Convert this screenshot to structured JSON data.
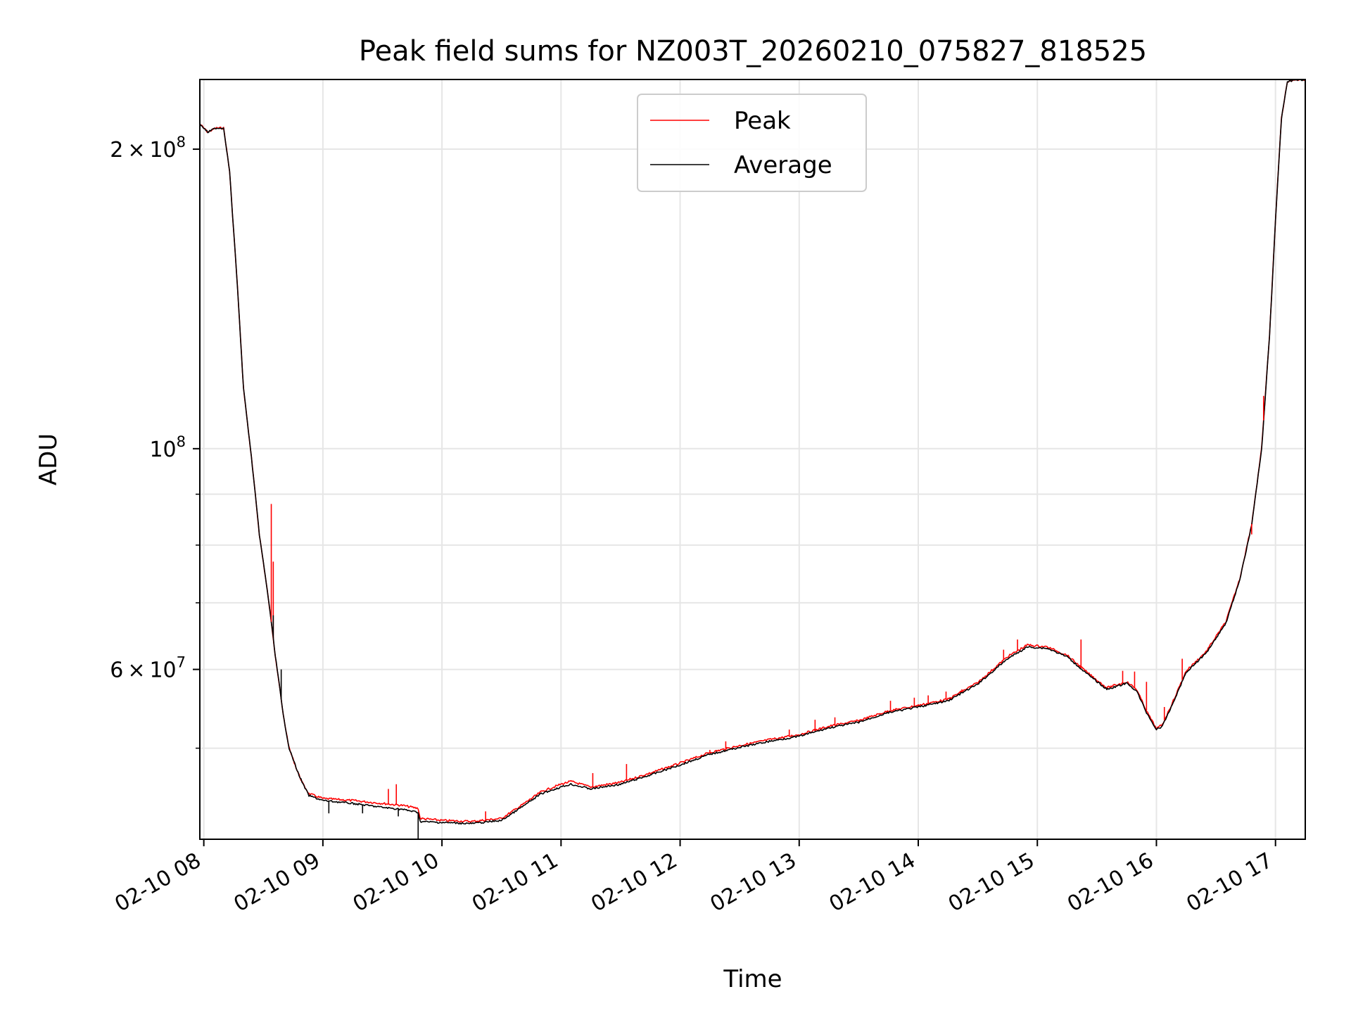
{
  "chart_data": {
    "type": "line",
    "title": "Peak field sums for NZ003T_20260210_075827_818525",
    "xlabel": "Time",
    "ylabel": "ADU",
    "date": "2026-02-10",
    "xlim": [
      "2026-02-10 07:58",
      "2026-02-10 17:15"
    ],
    "ylim": [
      40500000,
      235000000
    ],
    "yscale": "log",
    "grid": true,
    "legend_position": "top-center",
    "x_ticks": [
      {
        "t": "2026-02-10 08:00",
        "label": "02-10 08"
      },
      {
        "t": "2026-02-10 09:00",
        "label": "02-10 09"
      },
      {
        "t": "2026-02-10 10:00",
        "label": "02-10 10"
      },
      {
        "t": "2026-02-10 11:00",
        "label": "02-10 11"
      },
      {
        "t": "2026-02-10 12:00",
        "label": "02-10 12"
      },
      {
        "t": "2026-02-10 13:00",
        "label": "02-10 13"
      },
      {
        "t": "2026-02-10 14:00",
        "label": "02-10 14"
      },
      {
        "t": "2026-02-10 15:00",
        "label": "02-10 15"
      },
      {
        "t": "2026-02-10 16:00",
        "label": "02-10 16"
      },
      {
        "t": "2026-02-10 17:00",
        "label": "02-10 17"
      }
    ],
    "y_major_ticks": [
      {
        "v": 200000000,
        "mant": "2",
        "exp": "8"
      },
      {
        "v": 100000000,
        "mant": "",
        "exp": "8"
      },
      {
        "v": 60000000,
        "mant": "6",
        "exp": "7"
      }
    ],
    "y_minor_ticks": [
      50000000,
      70000000,
      80000000,
      90000000
    ],
    "series": [
      {
        "name": "Peak",
        "color": "#ff0000",
        "x": [
          "2026-02-10 07:58",
          "2026-02-10 08:02",
          "2026-02-10 08:06",
          "2026-02-10 08:10",
          "2026-02-10 08:13",
          "2026-02-10 08:17",
          "2026-02-10 08:20",
          "2026-02-10 08:24",
          "2026-02-10 08:28",
          "2026-02-10 08:32",
          "2026-02-10 08:34",
          "2026-02-10 08:36",
          "2026-02-10 08:38",
          "2026-02-10 08:40",
          "2026-02-10 08:43",
          "2026-02-10 08:47",
          "2026-02-10 08:50",
          "2026-02-10 08:53",
          "2026-02-10 09:00",
          "2026-02-10 09:15",
          "2026-02-10 09:30",
          "2026-02-10 09:40",
          "2026-02-10 09:48",
          "2026-02-10 09:49",
          "2026-02-10 10:00",
          "2026-02-10 10:15",
          "2026-02-10 10:30",
          "2026-02-10 10:40",
          "2026-02-10 10:50",
          "2026-02-10 11:00",
          "2026-02-10 11:05",
          "2026-02-10 11:15",
          "2026-02-10 11:30",
          "2026-02-10 11:45",
          "2026-02-10 12:00",
          "2026-02-10 12:15",
          "2026-02-10 12:30",
          "2026-02-10 12:45",
          "2026-02-10 13:00",
          "2026-02-10 13:15",
          "2026-02-10 13:30",
          "2026-02-10 13:45",
          "2026-02-10 14:00",
          "2026-02-10 14:15",
          "2026-02-10 14:30",
          "2026-02-10 14:45",
          "2026-02-10 14:55",
          "2026-02-10 15:05",
          "2026-02-10 15:15",
          "2026-02-10 15:25",
          "2026-02-10 15:35",
          "2026-02-10 15:45",
          "2026-02-10 15:50",
          "2026-02-10 15:55",
          "2026-02-10 16:00",
          "2026-02-10 16:03",
          "2026-02-10 16:08",
          "2026-02-10 16:15",
          "2026-02-10 16:25",
          "2026-02-10 16:35",
          "2026-02-10 16:42",
          "2026-02-10 16:48",
          "2026-02-10 16:53",
          "2026-02-10 16:57",
          "2026-02-10 17:00",
          "2026-02-10 17:03",
          "2026-02-10 17:06",
          "2026-02-10 17:10",
          "2026-02-10 17:15"
        ],
        "y": [
          212000000,
          208000000,
          210000000,
          210000000,
          190000000,
          145000000,
          115000000,
          98000000,
          82000000,
          72000000,
          67000000,
          62000000,
          58000000,
          54000000,
          50000000,
          47500000,
          46000000,
          45000000,
          44500000,
          44300000,
          44000000,
          43800000,
          43500000,
          42500000,
          42300000,
          42200000,
          42500000,
          43800000,
          45200000,
          46000000,
          46300000,
          45700000,
          46200000,
          47200000,
          48300000,
          49500000,
          50300000,
          51000000,
          51600000,
          52600000,
          53300000,
          54500000,
          55200000,
          56000000,
          58200000,
          61800000,
          63500000,
          63200000,
          62000000,
          59600000,
          57500000,
          58300000,
          57300000,
          54500000,
          52300000,
          52800000,
          55500000,
          59800000,
          62500000,
          67000000,
          74000000,
          84000000,
          100000000,
          130000000,
          170000000,
          215000000,
          234000000,
          235000000,
          235000000
        ],
        "spikes": [
          {
            "t": "2026-02-10 08:34",
            "y": 88000000
          },
          {
            "t": "2026-02-10 08:35",
            "y": 77000000
          },
          {
            "t": "2026-02-10 09:33",
            "y": 45500000
          },
          {
            "t": "2026-02-10 09:37",
            "y": 46000000
          },
          {
            "t": "2026-02-10 10:22",
            "y": 43200000
          },
          {
            "t": "2026-02-10 11:16",
            "y": 47200000
          },
          {
            "t": "2026-02-10 11:33",
            "y": 48200000
          },
          {
            "t": "2026-02-10 12:15",
            "y": 49800000
          },
          {
            "t": "2026-02-10 12:23",
            "y": 50800000
          },
          {
            "t": "2026-02-10 12:55",
            "y": 52200000
          },
          {
            "t": "2026-02-10 13:08",
            "y": 53400000
          },
          {
            "t": "2026-02-10 13:18",
            "y": 53700000
          },
          {
            "t": "2026-02-10 13:46",
            "y": 55800000
          },
          {
            "t": "2026-02-10 13:58",
            "y": 56200000
          },
          {
            "t": "2026-02-10 14:05",
            "y": 56500000
          },
          {
            "t": "2026-02-10 14:14",
            "y": 57000000
          },
          {
            "t": "2026-02-10 14:22",
            "y": 57300000
          },
          {
            "t": "2026-02-10 14:43",
            "y": 62800000
          },
          {
            "t": "2026-02-10 14:50",
            "y": 64300000
          },
          {
            "t": "2026-02-10 15:22",
            "y": 64300000
          },
          {
            "t": "2026-02-10 15:43",
            "y": 59800000
          },
          {
            "t": "2026-02-10 15:49",
            "y": 59700000
          },
          {
            "t": "2026-02-10 15:55",
            "y": 58300000
          },
          {
            "t": "2026-02-10 16:04",
            "y": 55000000
          },
          {
            "t": "2026-02-10 16:13",
            "y": 61500000
          },
          {
            "t": "2026-02-10 16:48",
            "y": 82000000
          },
          {
            "t": "2026-02-10 16:54",
            "y": 113000000
          }
        ]
      },
      {
        "name": "Average",
        "color": "#000000",
        "x": [
          "2026-02-10 07:58",
          "2026-02-10 08:02",
          "2026-02-10 08:06",
          "2026-02-10 08:10",
          "2026-02-10 08:13",
          "2026-02-10 08:17",
          "2026-02-10 08:20",
          "2026-02-10 08:24",
          "2026-02-10 08:28",
          "2026-02-10 08:32",
          "2026-02-10 08:34",
          "2026-02-10 08:36",
          "2026-02-10 08:38",
          "2026-02-10 08:40",
          "2026-02-10 08:43",
          "2026-02-10 08:47",
          "2026-02-10 08:50",
          "2026-02-10 08:53",
          "2026-02-10 09:00",
          "2026-02-10 09:15",
          "2026-02-10 09:30",
          "2026-02-10 09:40",
          "2026-02-10 09:48",
          "2026-02-10 09:49",
          "2026-02-10 10:00",
          "2026-02-10 10:15",
          "2026-02-10 10:30",
          "2026-02-10 10:40",
          "2026-02-10 10:50",
          "2026-02-10 11:00",
          "2026-02-10 11:05",
          "2026-02-10 11:15",
          "2026-02-10 11:30",
          "2026-02-10 11:45",
          "2026-02-10 12:00",
          "2026-02-10 12:15",
          "2026-02-10 12:30",
          "2026-02-10 12:45",
          "2026-02-10 13:00",
          "2026-02-10 13:15",
          "2026-02-10 13:30",
          "2026-02-10 13:45",
          "2026-02-10 14:00",
          "2026-02-10 14:15",
          "2026-02-10 14:30",
          "2026-02-10 14:45",
          "2026-02-10 14:55",
          "2026-02-10 15:05",
          "2026-02-10 15:15",
          "2026-02-10 15:25",
          "2026-02-10 15:35",
          "2026-02-10 15:45",
          "2026-02-10 15:50",
          "2026-02-10 15:55",
          "2026-02-10 16:00",
          "2026-02-10 16:03",
          "2026-02-10 16:08",
          "2026-02-10 16:15",
          "2026-02-10 16:25",
          "2026-02-10 16:35",
          "2026-02-10 16:42",
          "2026-02-10 16:48",
          "2026-02-10 16:53",
          "2026-02-10 16:57",
          "2026-02-10 17:00",
          "2026-02-10 17:03",
          "2026-02-10 17:06",
          "2026-02-10 17:10",
          "2026-02-10 17:15"
        ],
        "y": [
          212000000,
          208000000,
          210000000,
          210000000,
          190000000,
          145000000,
          115000000,
          98000000,
          82000000,
          72000000,
          67000000,
          62000000,
          58000000,
          54000000,
          50000000,
          47500000,
          46000000,
          44800000,
          44300000,
          44000000,
          43600000,
          43400000,
          43100000,
          42200000,
          42100000,
          42000000,
          42300000,
          43600000,
          45000000,
          45700000,
          46000000,
          45500000,
          46000000,
          47000000,
          48100000,
          49300000,
          50100000,
          50800000,
          51400000,
          52400000,
          53100000,
          54300000,
          55000000,
          55800000,
          58000000,
          61500000,
          63200000,
          63000000,
          61800000,
          59400000,
          57300000,
          58100000,
          57100000,
          54300000,
          52200000,
          52600000,
          55300000,
          59600000,
          62300000,
          66800000,
          73800000,
          83800000,
          99800000,
          129800000,
          169800000,
          214800000,
          233800000,
          234800000,
          234800000
        ],
        "dips": [
          {
            "t": "2026-02-10 08:35",
            "y": 68000000
          },
          {
            "t": "2026-02-10 08:39",
            "y": 60000000
          },
          {
            "t": "2026-02-10 09:03",
            "y": 43000000
          },
          {
            "t": "2026-02-10 09:20",
            "y": 43000000
          },
          {
            "t": "2026-02-10 09:38",
            "y": 42700000
          },
          {
            "t": "2026-02-10 09:48",
            "y": 40500000
          }
        ]
      }
    ]
  }
}
